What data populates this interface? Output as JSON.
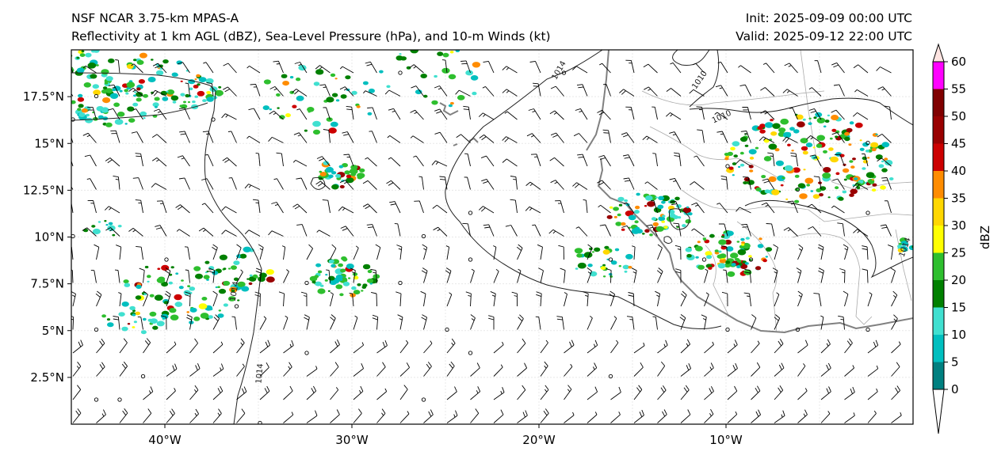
{
  "header": {
    "left_line1": "NSF NCAR 3.75-km MPAS-A",
    "left_line2": "Reflectivity at 1 km AGL (dBZ), Sea-Level Pressure (hPa), and 10-m Winds (kt)",
    "right_line1": "Init: 2025-09-09 00:00 UTC",
    "right_line2": "Valid: 2025-09-12 22:00 UTC"
  },
  "map": {
    "lon_range": [
      -45,
      0
    ],
    "lat_range": [
      0,
      20
    ],
    "lat_ticks": [
      "17.5°N",
      "15°N",
      "12.5°N",
      "10°N",
      "7.5°N",
      "5°N",
      "2.5°N"
    ],
    "lat_tick_values": [
      17.5,
      15,
      12.5,
      10,
      7.5,
      5,
      2.5
    ],
    "lon_ticks": [
      "40°W",
      "30°W",
      "20°W",
      "10°W"
    ],
    "lon_tick_values": [
      -40,
      -30,
      -20,
      -10
    ],
    "grid": true,
    "contour_labels": [
      "1014",
      "1010",
      "1010",
      "1014",
      "1014",
      "1014"
    ]
  },
  "colorbar": {
    "label": "dBZ",
    "ticks": [
      "0",
      "5",
      "10",
      "15",
      "20",
      "25",
      "30",
      "35",
      "40",
      "45",
      "50",
      "55",
      "60"
    ],
    "colors": [
      "#008080",
      "#00bfbf",
      "#40e0d0",
      "#008000",
      "#2ebf2e",
      "#ffff00",
      "#ffd700",
      "#ff8c00",
      "#cc0000",
      "#990000",
      "#800000",
      "#ff00ff",
      "#ffe4e1"
    ]
  }
}
